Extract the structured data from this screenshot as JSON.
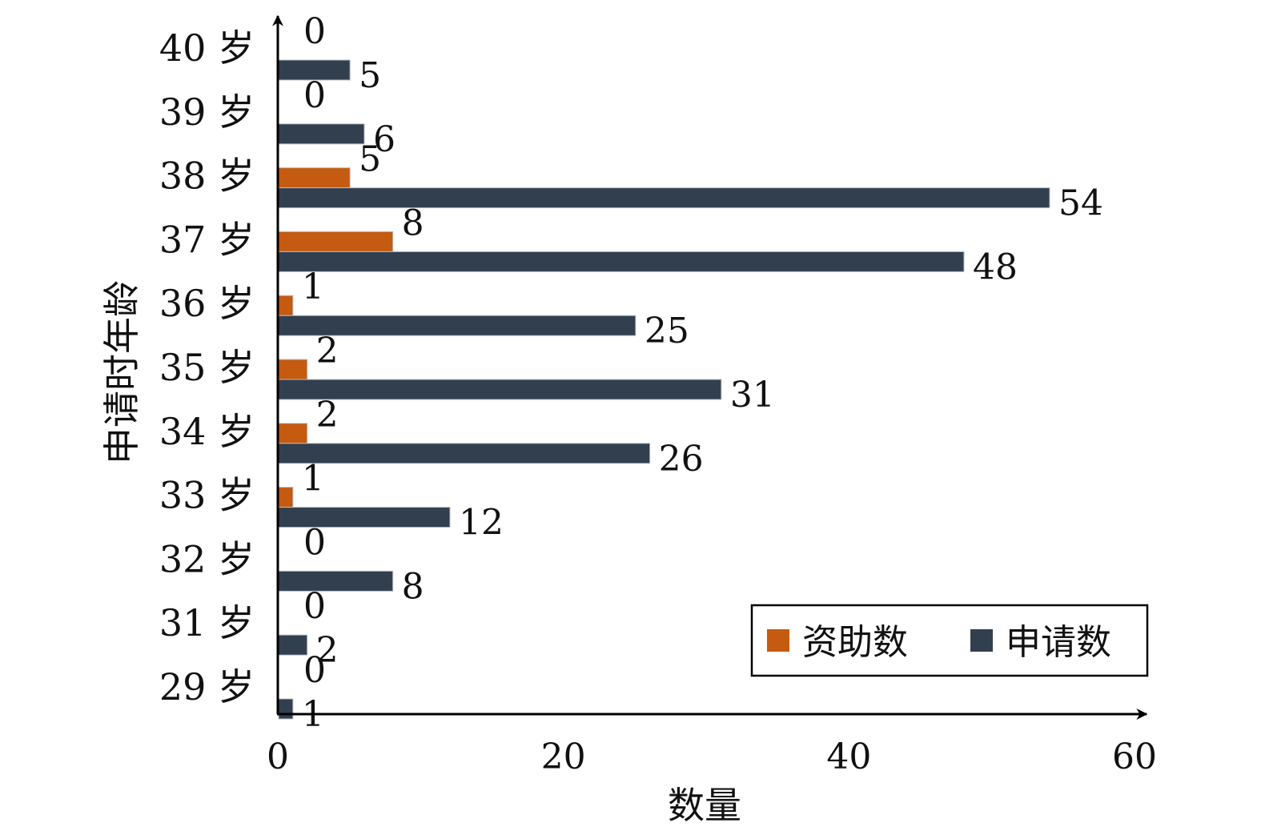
{
  "chart_data": {
    "type": "bar",
    "orientation": "horizontal",
    "categories": [
      "40 岁",
      "39 岁",
      "38 岁",
      "37 岁",
      "36 岁",
      "35 岁",
      "34 岁",
      "33 岁",
      "32 岁",
      "31 岁",
      "29 岁"
    ],
    "series": [
      {
        "name": "资助数",
        "color": "#c55a11",
        "values": [
          0,
          0,
          5,
          8,
          1,
          2,
          2,
          1,
          0,
          0,
          0
        ]
      },
      {
        "name": "申请数",
        "color": "#323f4f",
        "values": [
          5,
          6,
          54,
          48,
          25,
          31,
          26,
          12,
          8,
          2,
          1
        ]
      }
    ],
    "xlabel": "数量",
    "ylabel": "申请时年龄",
    "xlim": [
      0,
      60
    ],
    "xticks": [
      0,
      20,
      40,
      60
    ],
    "grid": false,
    "legend_position": "bottom-right"
  }
}
